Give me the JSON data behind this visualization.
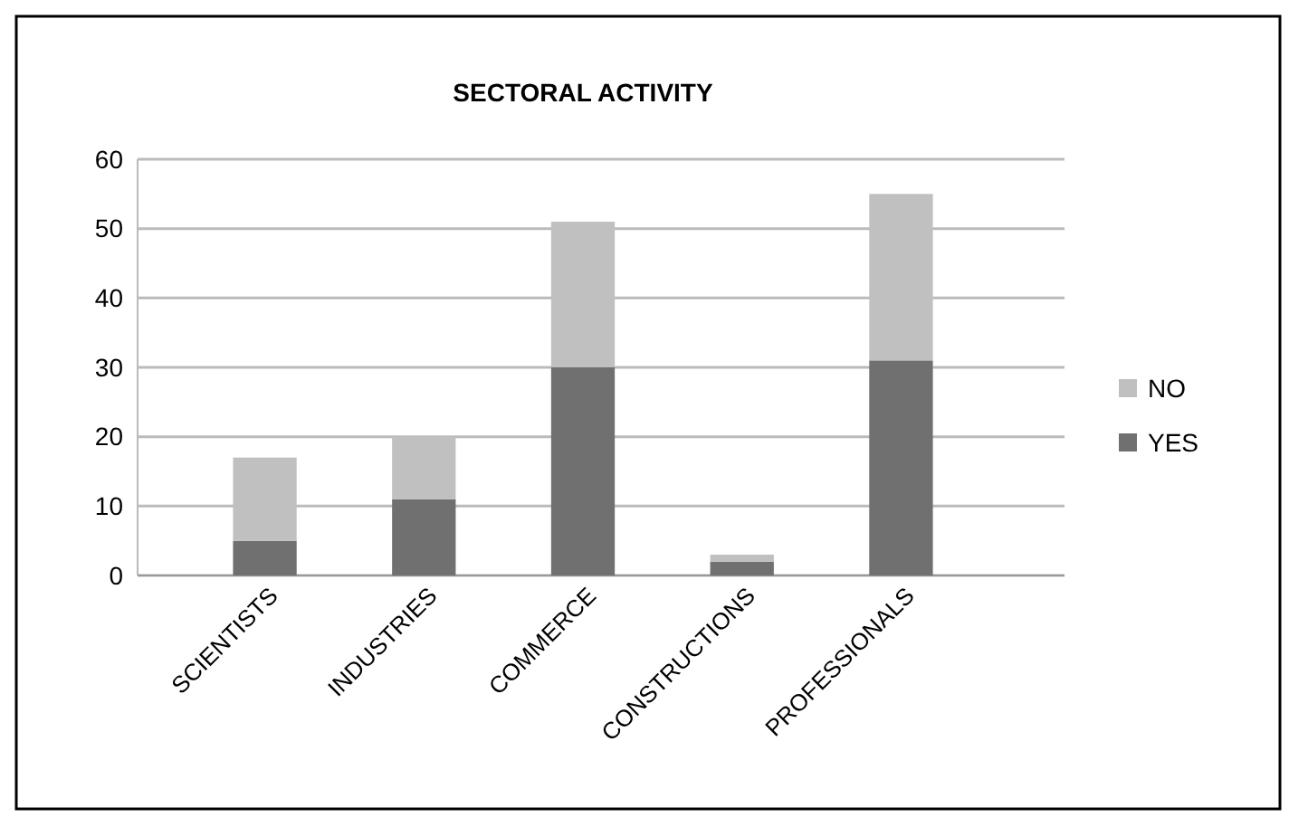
{
  "chart_data": {
    "type": "bar",
    "title": "SECTORAL ACTIVITY",
    "categories": [
      "SCIENTISTS",
      "INDUSTRIES",
      "COMMERCE",
      "CONSTRUCTIONS",
      "PROFESSIONALS"
    ],
    "stacked": true,
    "series": [
      {
        "name": "YES",
        "color": "#707070",
        "values": [
          5,
          11,
          30,
          2,
          31
        ]
      },
      {
        "name": "NO",
        "color": "#c0c0c0",
        "values": [
          12,
          9,
          21,
          1,
          24
        ]
      }
    ],
    "ylim": [
      0,
      60
    ],
    "yticks": [
      0,
      10,
      20,
      30,
      40,
      50,
      60
    ],
    "grid": "y",
    "legend": "right"
  }
}
